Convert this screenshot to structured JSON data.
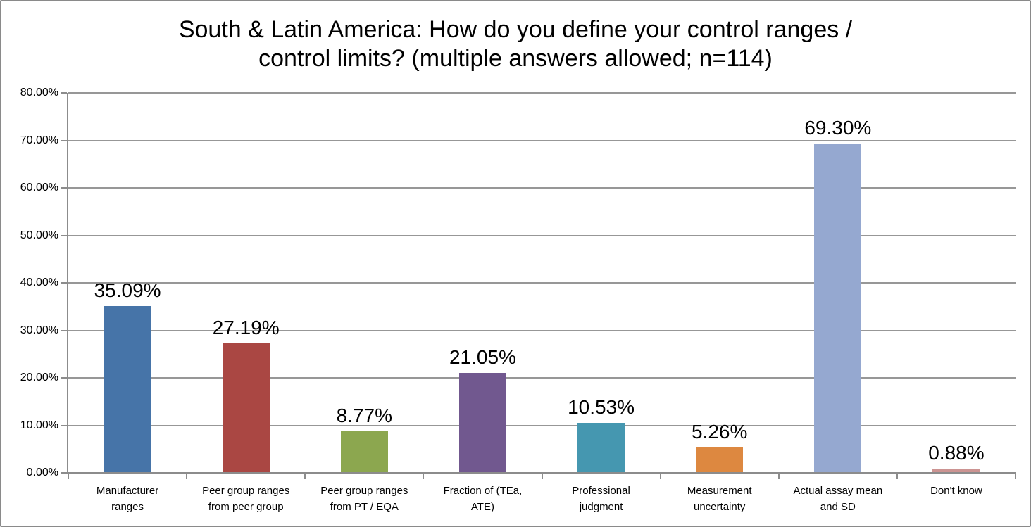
{
  "chart_data": {
    "type": "bar",
    "title": "South & Latin America: How do you define your control ranges / control limits? (multiple answers allowed; n=114)",
    "title_lines": [
      "South & Latin America: How do you define your control ranges /",
      "control limits? (multiple answers allowed; n=114)"
    ],
    "categories": [
      "Manufacturer ranges",
      "Peer group ranges from peer group",
      "Peer group ranges from PT / EQA",
      "Fraction of (TEa, ATE)",
      "Professional judgment",
      "Measurement uncertainty",
      "Actual assay mean and SD",
      "Don't know"
    ],
    "category_lines": [
      [
        "Manufacturer",
        "ranges"
      ],
      [
        "Peer group ranges",
        "from peer group"
      ],
      [
        "Peer group ranges",
        "from PT / EQA"
      ],
      [
        "Fraction of (TEa,",
        "ATE)"
      ],
      [
        "Professional",
        "judgment"
      ],
      [
        "Measurement",
        "uncertainty"
      ],
      [
        "Actual assay mean",
        "and SD"
      ],
      [
        "Don't know"
      ]
    ],
    "values": [
      35.09,
      27.19,
      8.77,
      21.05,
      10.53,
      5.26,
      69.3,
      0.88
    ],
    "value_labels": [
      "35.09%",
      "27.19%",
      "8.77%",
      "21.05%",
      "10.53%",
      "5.26%",
      "69.30%",
      "0.88%"
    ],
    "bar_colors": [
      "#4674A8",
      "#AA4743",
      "#8CA74F",
      "#71588F",
      "#4597B0",
      "#DD8840",
      "#95A8D0",
      "#CC9492"
    ],
    "yaxis": {
      "min": 0,
      "max": 80,
      "tick_labels": [
        "0.00%",
        "10.00%",
        "20.00%",
        "30.00%",
        "40.00%",
        "50.00%",
        "60.00%",
        "70.00%",
        "80.00%"
      ]
    },
    "xlabel": "",
    "ylabel": "",
    "ylim": [
      0,
      80
    ],
    "grid": true,
    "legend": "none"
  }
}
